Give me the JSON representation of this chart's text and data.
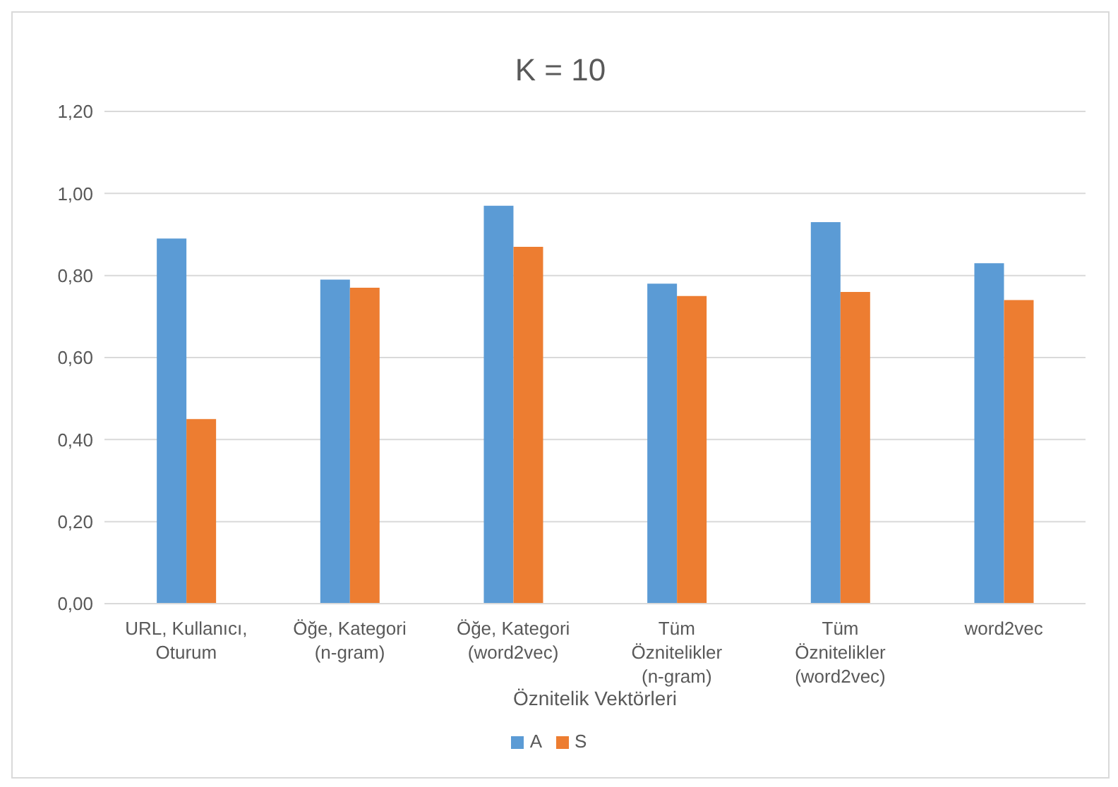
{
  "chart_data": {
    "type": "bar",
    "title": "K = 10",
    "xlabel": "Öznitelik Vektörleri",
    "categories": [
      "URL, Kullanıcı, Oturum",
      "Öğe, Kategori (n-gram)",
      "Öğe, Kategori (word2vec)",
      "Tüm Öznitelikler (n-gram)",
      "Tüm Öznitelikler (word2vec)",
      "word2vec"
    ],
    "series": [
      {
        "name": "A",
        "color": "#5b9bd5",
        "values": [
          0.89,
          0.79,
          0.97,
          0.78,
          0.93,
          0.83
        ]
      },
      {
        "name": "S",
        "color": "#ed7d31",
        "values": [
          0.45,
          0.77,
          0.87,
          0.75,
          0.76,
          0.74
        ]
      }
    ],
    "ylim": [
      0,
      1.2
    ],
    "yticks": [
      {
        "value": 0,
        "label": "0,00"
      },
      {
        "value": 0.2,
        "label": "0,20"
      },
      {
        "value": 0.4,
        "label": "0,40"
      },
      {
        "value": 0.6,
        "label": "0,60"
      },
      {
        "value": 0.8,
        "label": "0,80"
      },
      {
        "value": 1.0,
        "label": "1,00"
      },
      {
        "value": 1.2,
        "label": "1,20"
      }
    ],
    "grid": "y",
    "legend": "bottom"
  }
}
